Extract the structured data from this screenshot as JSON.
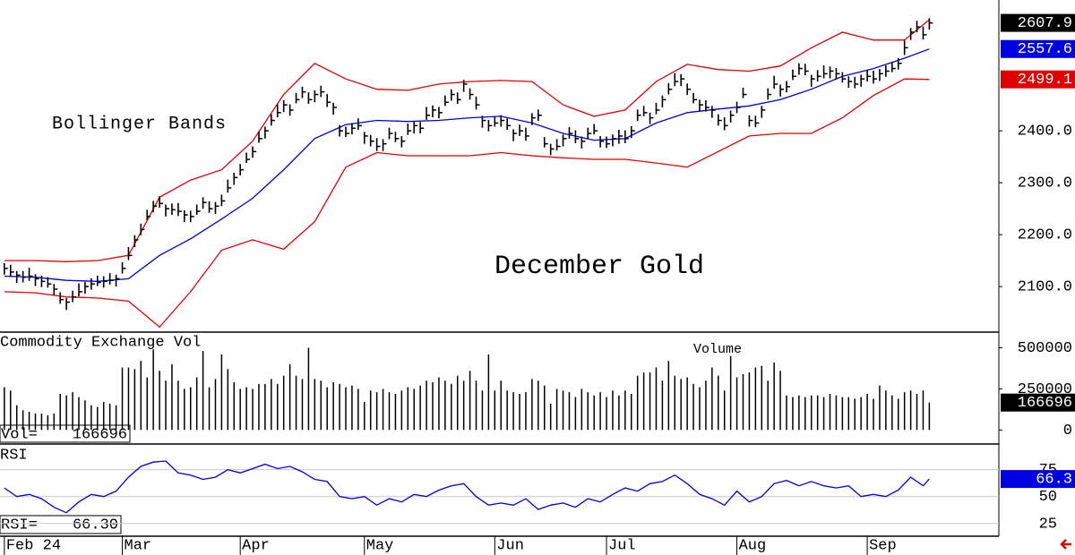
{
  "chart_data": [
    {
      "type": "ohlc",
      "title": "December Gold",
      "annotation": "Bollinger Bands",
      "color": "#000000",
      "ylim": [
        2014,
        2652
      ],
      "yticks": [
        {
          "value": 2100,
          "label": "2100.0"
        },
        {
          "value": 2200,
          "label": "2200.0"
        },
        {
          "value": 2300,
          "label": "2300.0"
        },
        {
          "value": 2400,
          "label": "2400.0"
        }
      ],
      "high": [
        2145,
        2142,
        2130,
        2130,
        2136,
        2124,
        2121,
        2118,
        2105,
        2089,
        2078,
        2092,
        2106,
        2109,
        2116,
        2121,
        2120,
        2126,
        2123,
        2147,
        2176,
        2199,
        2221,
        2248,
        2265,
        2274,
        2258,
        2260,
        2261,
        2247,
        2246,
        2258,
        2272,
        2264,
        2263,
        2277,
        2306,
        2319,
        2336,
        2358,
        2370,
        2399,
        2408,
        2432,
        2451,
        2459,
        2451,
        2473,
        2485,
        2474,
        2478,
        2487,
        2471,
        2454,
        2411,
        2408,
        2415,
        2424,
        2398,
        2392,
        2386,
        2384,
        2406,
        2398,
        2390,
        2414,
        2418,
        2417,
        2446,
        2449,
        2446,
        2468,
        2480,
        2474,
        2498,
        2482,
        2466,
        2429,
        2421,
        2428,
        2430,
        2424,
        2403,
        2412,
        2406,
        2434,
        2441,
        2388,
        2375,
        2384,
        2393,
        2407,
        2401,
        2389,
        2406,
        2413,
        2390,
        2389,
        2393,
        2402,
        2401,
        2409,
        2441,
        2448,
        2435,
        2454,
        2468,
        2492,
        2511,
        2509,
        2491,
        2473,
        2460,
        2459,
        2448,
        2432,
        2426,
        2439,
        2456,
        2483,
        2430,
        2429,
        2448,
        2482,
        2506,
        2489,
        2496,
        2518,
        2530,
        2529,
        2508,
        2517,
        2526,
        2524,
        2521,
        2513,
        2505,
        2504,
        2508,
        2517,
        2516,
        2519,
        2526,
        2533,
        2540,
        2574,
        2598,
        2612,
        2601,
        2617
      ],
      "low": [
        2123,
        2120,
        2107,
        2108,
        2111,
        2101,
        2099,
        2098,
        2083,
        2067,
        2055,
        2070,
        2081,
        2086,
        2094,
        2101,
        2098,
        2104,
        2100,
        2125,
        2151,
        2176,
        2199,
        2228,
        2243,
        2252,
        2235,
        2238,
        2236,
        2224,
        2224,
        2238,
        2250,
        2242,
        2240,
        2255,
        2281,
        2296,
        2314,
        2338,
        2348,
        2377,
        2385,
        2410,
        2426,
        2436,
        2429,
        2453,
        2463,
        2452,
        2455,
        2465,
        2446,
        2431,
        2389,
        2388,
        2393,
        2402,
        2375,
        2370,
        2361,
        2361,
        2384,
        2378,
        2368,
        2392,
        2395,
        2395,
        2421,
        2426,
        2424,
        2448,
        2458,
        2452,
        2475,
        2460,
        2441,
        2406,
        2399,
        2408,
        2408,
        2402,
        2380,
        2390,
        2381,
        2411,
        2419,
        2368,
        2353,
        2362,
        2370,
        2385,
        2376,
        2366,
        2384,
        2393,
        2368,
        2367,
        2370,
        2375,
        2376,
        2386,
        2419,
        2428,
        2413,
        2432,
        2445,
        2470,
        2486,
        2486,
        2469,
        2453,
        2438,
        2437,
        2425,
        2410,
        2401,
        2416,
        2434,
        2463,
        2408,
        2407,
        2425,
        2460,
        2481,
        2466,
        2474,
        2498,
        2508,
        2507,
        2485,
        2495,
        2501,
        2501,
        2499,
        2493,
        2483,
        2482,
        2485,
        2495,
        2491,
        2496,
        2504,
        2513,
        2518,
        2546,
        2575,
        2590,
        2576,
        2595
      ],
      "close": [
        2135,
        2128,
        2122,
        2118,
        2120,
        2115,
        2110,
        2105,
        2095,
        2075,
        2070,
        2080,
        2090,
        2100,
        2105,
        2108,
        2110,
        2112,
        2115,
        2135,
        2160,
        2190,
        2210,
        2235,
        2255,
        2260,
        2250,
        2248,
        2245,
        2238,
        2235,
        2245,
        2262,
        2250,
        2255,
        2265,
        2290,
        2310,
        2325,
        2345,
        2360,
        2385,
        2400,
        2420,
        2435,
        2450,
        2440,
        2460,
        2475,
        2460,
        2470,
        2475,
        2455,
        2445,
        2400,
        2395,
        2405,
        2410,
        2390,
        2380,
        2370,
        2375,
        2395,
        2385,
        2380,
        2400,
        2410,
        2405,
        2430,
        2440,
        2435,
        2455,
        2470,
        2460,
        2490,
        2470,
        2450,
        2420,
        2410,
        2415,
        2420,
        2410,
        2395,
        2400,
        2390,
        2425,
        2430,
        2375,
        2365,
        2370,
        2385,
        2395,
        2385,
        2380,
        2395,
        2400,
        2380,
        2375,
        2385,
        2390,
        2385,
        2400,
        2430,
        2435,
        2425,
        2440,
        2460,
        2480,
        2495,
        2500,
        2480,
        2460,
        2450,
        2445,
        2440,
        2420,
        2410,
        2430,
        2445,
        2470,
        2420,
        2415,
        2440,
        2470,
        2490,
        2480,
        2485,
        2505,
        2520,
        2515,
        2500,
        2505,
        2510,
        2515,
        2510,
        2500,
        2495,
        2490,
        2500,
        2505,
        2500,
        2510,
        2515,
        2520,
        2530,
        2560,
        2590,
        2600,
        2585,
        2607.9
      ],
      "close_badge_color": "#000000",
      "bands": {
        "x": [
          0,
          5,
          10,
          15,
          20,
          25,
          30,
          35,
          40,
          45,
          50,
          55,
          60,
          65,
          70,
          75,
          80,
          85,
          90,
          95,
          100,
          105,
          110,
          115,
          120,
          125,
          130,
          135,
          140,
          145,
          149
        ],
        "upper": [
          2150,
          2150,
          2148,
          2150,
          2160,
          2272,
          2305,
          2325,
          2380,
          2470,
          2530,
          2500,
          2480,
          2478,
          2490,
          2495,
          2497,
          2495,
          2450,
          2428,
          2440,
          2495,
          2528,
          2518,
          2515,
          2525,
          2560,
          2590,
          2575,
          2575,
          2614
        ],
        "middle": [
          2120,
          2118,
          2112,
          2110,
          2115,
          2160,
          2192,
          2230,
          2270,
          2325,
          2385,
          2412,
          2420,
          2418,
          2420,
          2425,
          2428,
          2415,
          2395,
          2382,
          2385,
          2415,
          2435,
          2442,
          2448,
          2460,
          2480,
          2505,
          2520,
          2540,
          2557.6
        ],
        "lower": [
          2090,
          2088,
          2080,
          2078,
          2072,
          2022,
          2090,
          2170,
          2190,
          2172,
          2225,
          2330,
          2358,
          2352,
          2352,
          2352,
          2358,
          2352,
          2348,
          2345,
          2345,
          2338,
          2330,
          2360,
          2390,
          2395,
          2395,
          2425,
          2468,
          2500,
          2499.1
        ],
        "outer_color": "#e00000",
        "middle_color": "#0000e0"
      }
    },
    {
      "type": "bar",
      "title": "Commodity Exchange Vol",
      "annotation": "Volume",
      "color": "#000000",
      "readout_label": "Vol=",
      "ylim": [
        -80000,
        590000
      ],
      "yticks": [
        0,
        250000,
        500000
      ],
      "values": [
        260000,
        240000,
        150000,
        120000,
        110000,
        100000,
        100000,
        90000,
        100000,
        220000,
        210000,
        230000,
        200000,
        180000,
        150000,
        140000,
        170000,
        160000,
        150000,
        380000,
        380000,
        370000,
        420000,
        320000,
        490000,
        360000,
        300000,
        400000,
        300000,
        250000,
        260000,
        320000,
        480000,
        260000,
        310000,
        460000,
        370000,
        290000,
        250000,
        260000,
        250000,
        280000,
        280000,
        310000,
        280000,
        330000,
        400000,
        330000,
        310000,
        500000,
        310000,
        300000,
        260000,
        290000,
        280000,
        260000,
        270000,
        250000,
        170000,
        240000,
        230000,
        250000,
        230000,
        220000,
        240000,
        260000,
        250000,
        270000,
        300000,
        290000,
        320000,
        300000,
        280000,
        330000,
        300000,
        360000,
        300000,
        240000,
        460000,
        240000,
        300000,
        240000,
        230000,
        220000,
        230000,
        310000,
        300000,
        270000,
        160000,
        250000,
        240000,
        230000,
        200000,
        250000,
        230000,
        210000,
        230000,
        200000,
        240000,
        210000,
        240000,
        220000,
        330000,
        350000,
        350000,
        380000,
        300000,
        420000,
        330000,
        310000,
        320000,
        280000,
        260000,
        300000,
        380000,
        330000,
        240000,
        450000,
        320000,
        340000,
        350000,
        380000,
        390000,
        300000,
        410000,
        360000,
        210000,
        200000,
        210000,
        200000,
        210000,
        210000,
        200000,
        220000,
        210000,
        200000,
        200000,
        190000,
        200000,
        220000,
        190000,
        270000,
        240000,
        210000,
        190000,
        230000,
        240000,
        220000,
        240000,
        166696
      ]
    },
    {
      "type": "line",
      "title": "RSI",
      "color": "#0000e0",
      "readout": {
        "label": "RSI=",
        "value_label": "66.30"
      },
      "ylim": [
        14,
        98
      ],
      "yticks": [
        25,
        50,
        75
      ],
      "xlim": [
        -0.7,
        160.2
      ],
      "xticks": [
        {
          "value": 0,
          "label": "Feb 24"
        },
        {
          "value": 19,
          "label": "Mar"
        },
        {
          "value": 38,
          "label": "Apr"
        },
        {
          "value": 58,
          "label": "May"
        },
        {
          "value": 79,
          "label": "Jun"
        },
        {
          "value": 97,
          "label": "Jul"
        },
        {
          "value": 118,
          "label": "Aug"
        },
        {
          "value": 139,
          "label": "Sep"
        }
      ],
      "x": [
        0,
        2,
        4,
        6,
        8,
        10,
        12,
        14,
        16,
        18,
        20,
        22,
        24,
        26,
        28,
        30,
        32,
        34,
        36,
        38,
        40,
        42,
        44,
        46,
        48,
        50,
        52,
        54,
        56,
        58,
        60,
        62,
        64,
        66,
        68,
        70,
        72,
        74,
        76,
        78,
        80,
        82,
        84,
        86,
        88,
        90,
        92,
        94,
        96,
        98,
        100,
        102,
        104,
        106,
        108,
        110,
        112,
        114,
        116,
        118,
        120,
        122,
        124,
        126,
        128,
        130,
        132,
        134,
        136,
        138,
        140,
        142,
        144,
        146,
        148,
        149
      ],
      "values": [
        58,
        50,
        52,
        48,
        40,
        35,
        45,
        52,
        50,
        55,
        68,
        78,
        82,
        83,
        72,
        70,
        66,
        68,
        75,
        72,
        76,
        80,
        76,
        78,
        73,
        66,
        64,
        50,
        48,
        50,
        42,
        48,
        45,
        52,
        50,
        56,
        60,
        62,
        50,
        42,
        44,
        42,
        48,
        38,
        42,
        44,
        40,
        48,
        45,
        52,
        58,
        55,
        62,
        64,
        70,
        62,
        52,
        48,
        42,
        55,
        45,
        50,
        62,
        65,
        60,
        64,
        60,
        58,
        60,
        50,
        52,
        50,
        56,
        68,
        60,
        66.3
      ]
    }
  ]
}
